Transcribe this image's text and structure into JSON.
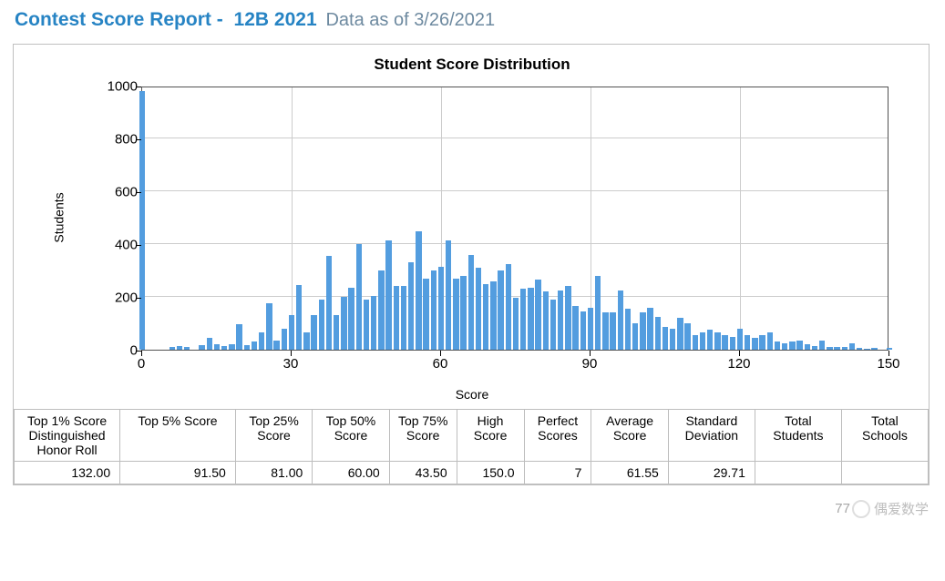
{
  "header": {
    "title_prefix": "Contest Score Report -",
    "title_contest": "12B 2021",
    "data_as_of": "Data as of 3/26/2021"
  },
  "chart": {
    "type": "histogram",
    "title": "Student Score Distribution",
    "xlabel": "Score",
    "ylabel": "Students",
    "xlim": [
      0,
      150
    ],
    "ylim": [
      0,
      1000
    ],
    "xtick_step": 30,
    "ytick_step": 200,
    "xticks": [
      0,
      30,
      60,
      90,
      120,
      150
    ],
    "yticks": [
      0,
      200,
      400,
      600,
      800,
      1000
    ],
    "bar_color": "#539ddf",
    "grid_color": "#cccccc",
    "axis_color": "#525252",
    "background_color": "#ffffff",
    "tick_fontsize": 15,
    "title_fontsize": 17,
    "label_fontsize": 14,
    "bar_width_x": 1.2,
    "series": [
      {
        "x": 0,
        "y": 980
      },
      {
        "x": 6,
        "y": 10
      },
      {
        "x": 7.5,
        "y": 14
      },
      {
        "x": 9,
        "y": 10
      },
      {
        "x": 12,
        "y": 18
      },
      {
        "x": 13.5,
        "y": 45
      },
      {
        "x": 15,
        "y": 22
      },
      {
        "x": 16.5,
        "y": 14
      },
      {
        "x": 18,
        "y": 20
      },
      {
        "x": 19.5,
        "y": 95
      },
      {
        "x": 21,
        "y": 18
      },
      {
        "x": 22.5,
        "y": 30
      },
      {
        "x": 24,
        "y": 65
      },
      {
        "x": 25.5,
        "y": 175
      },
      {
        "x": 27,
        "y": 35
      },
      {
        "x": 28.5,
        "y": 80
      },
      {
        "x": 30,
        "y": 130
      },
      {
        "x": 31.5,
        "y": 245
      },
      {
        "x": 33,
        "y": 65
      },
      {
        "x": 34.5,
        "y": 130
      },
      {
        "x": 36,
        "y": 190
      },
      {
        "x": 37.5,
        "y": 355
      },
      {
        "x": 39,
        "y": 130
      },
      {
        "x": 40.5,
        "y": 200
      },
      {
        "x": 42,
        "y": 235
      },
      {
        "x": 43.5,
        "y": 400
      },
      {
        "x": 45,
        "y": 190
      },
      {
        "x": 46.5,
        "y": 205
      },
      {
        "x": 48,
        "y": 300
      },
      {
        "x": 49.5,
        "y": 415
      },
      {
        "x": 51,
        "y": 240
      },
      {
        "x": 52.5,
        "y": 240
      },
      {
        "x": 54,
        "y": 330
      },
      {
        "x": 55.5,
        "y": 450
      },
      {
        "x": 57,
        "y": 270
      },
      {
        "x": 58.5,
        "y": 300
      },
      {
        "x": 60,
        "y": 315
      },
      {
        "x": 61.5,
        "y": 415
      },
      {
        "x": 63,
        "y": 270
      },
      {
        "x": 64.5,
        "y": 280
      },
      {
        "x": 66,
        "y": 360
      },
      {
        "x": 67.5,
        "y": 310
      },
      {
        "x": 69,
        "y": 250
      },
      {
        "x": 70.5,
        "y": 260
      },
      {
        "x": 72,
        "y": 300
      },
      {
        "x": 73.5,
        "y": 325
      },
      {
        "x": 75,
        "y": 195
      },
      {
        "x": 76.5,
        "y": 230
      },
      {
        "x": 78,
        "y": 235
      },
      {
        "x": 79.5,
        "y": 265
      },
      {
        "x": 81,
        "y": 220
      },
      {
        "x": 82.5,
        "y": 190
      },
      {
        "x": 84,
        "y": 225
      },
      {
        "x": 85.5,
        "y": 240
      },
      {
        "x": 87,
        "y": 165
      },
      {
        "x": 88.5,
        "y": 145
      },
      {
        "x": 90,
        "y": 160
      },
      {
        "x": 91.5,
        "y": 280
      },
      {
        "x": 93,
        "y": 140
      },
      {
        "x": 94.5,
        "y": 140
      },
      {
        "x": 96,
        "y": 225
      },
      {
        "x": 97.5,
        "y": 155
      },
      {
        "x": 99,
        "y": 100
      },
      {
        "x": 100.5,
        "y": 140
      },
      {
        "x": 102,
        "y": 160
      },
      {
        "x": 103.5,
        "y": 125
      },
      {
        "x": 105,
        "y": 85
      },
      {
        "x": 106.5,
        "y": 80
      },
      {
        "x": 108,
        "y": 120
      },
      {
        "x": 109.5,
        "y": 100
      },
      {
        "x": 111,
        "y": 55
      },
      {
        "x": 112.5,
        "y": 65
      },
      {
        "x": 114,
        "y": 75
      },
      {
        "x": 115.5,
        "y": 65
      },
      {
        "x": 117,
        "y": 55
      },
      {
        "x": 118.5,
        "y": 50
      },
      {
        "x": 120,
        "y": 80
      },
      {
        "x": 121.5,
        "y": 55
      },
      {
        "x": 123,
        "y": 45
      },
      {
        "x": 124.5,
        "y": 55
      },
      {
        "x": 126,
        "y": 65
      },
      {
        "x": 127.5,
        "y": 30
      },
      {
        "x": 129,
        "y": 25
      },
      {
        "x": 130.5,
        "y": 30
      },
      {
        "x": 132,
        "y": 35
      },
      {
        "x": 133.5,
        "y": 20
      },
      {
        "x": 135,
        "y": 15
      },
      {
        "x": 136.5,
        "y": 35
      },
      {
        "x": 138,
        "y": 12
      },
      {
        "x": 139.5,
        "y": 10
      },
      {
        "x": 141,
        "y": 12
      },
      {
        "x": 142.5,
        "y": 25
      },
      {
        "x": 144,
        "y": 8
      },
      {
        "x": 145.5,
        "y": 5
      },
      {
        "x": 147,
        "y": 8
      },
      {
        "x": 150,
        "y": 7
      }
    ]
  },
  "stats": {
    "columns": [
      "Top 1% Score Distinguished Honor Roll",
      "Top 5% Score",
      "Top 25% Score",
      "Top 50% Score",
      "Top 75% Score",
      "High Score",
      "Perfect Scores",
      "Average Score",
      "Standard Deviation",
      "Total Students",
      "Total Schools"
    ],
    "values": [
      "132.00",
      "91.50",
      "81.00",
      "60.00",
      "43.50",
      "150.0",
      "7",
      "61.55",
      "29.71",
      "",
      ""
    ],
    "column_widths_pct": [
      11,
      12,
      8,
      8,
      7,
      7,
      7,
      8,
      9,
      9,
      9
    ]
  },
  "watermark": {
    "text": "偶爱数学",
    "overlap_digits": "77",
    "color": "#a8a8a8"
  }
}
